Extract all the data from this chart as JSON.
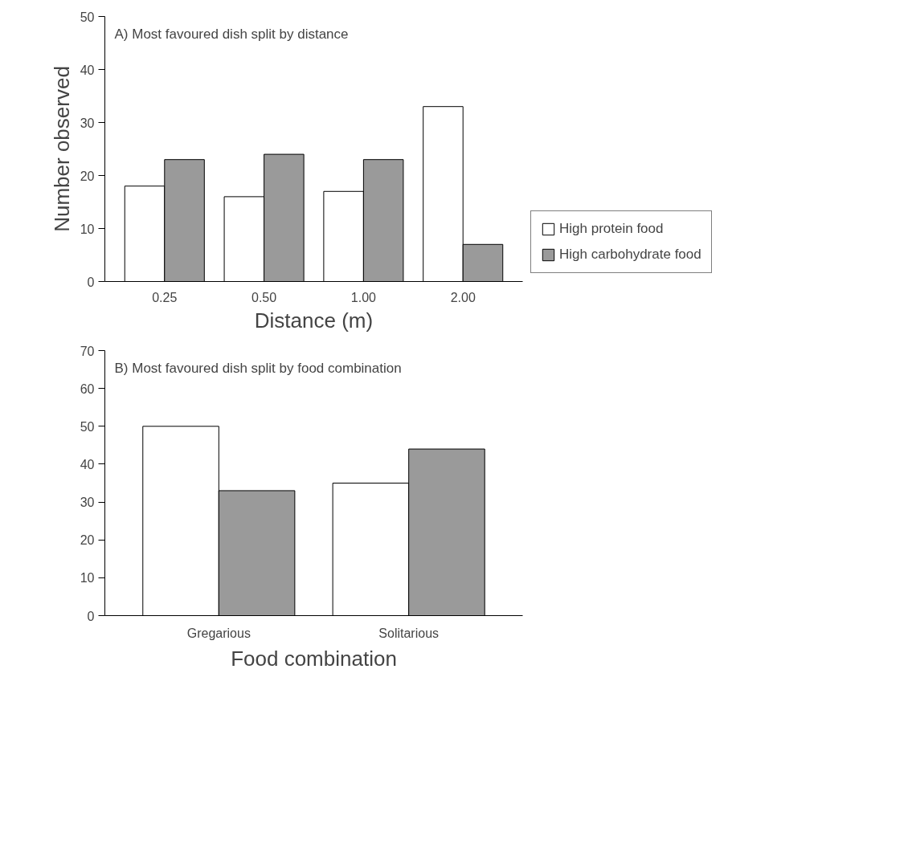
{
  "chart_data": [
    {
      "type": "bar",
      "title": "A) Most favoured dish split by distance",
      "xlabel": "Distance (m)",
      "ylabel": "Number observed",
      "categories": [
        "0.25",
        "0.50",
        "1.00",
        "2.00"
      ],
      "series": [
        {
          "name": "High protein food",
          "color": "#ffffff",
          "values": [
            18,
            16,
            17,
            33
          ]
        },
        {
          "name": "High carbohydrate food",
          "color": "#9a9a9a",
          "values": [
            23,
            24,
            23,
            7
          ]
        }
      ],
      "ylim": [
        0,
        50
      ],
      "yticks": [
        0,
        10,
        20,
        30,
        40,
        50
      ],
      "grid": false,
      "legend": "right"
    },
    {
      "type": "bar",
      "title": "B) Most favoured dish split by food combination",
      "xlabel": "Food combination",
      "categories": [
        "Gregarious",
        "Solitarious"
      ],
      "series": [
        {
          "color": "#ffffff",
          "values": [
            50,
            35
          ]
        },
        {
          "color": "#9a9a9a",
          "values": [
            33,
            44
          ]
        }
      ],
      "ylim": [
        0,
        70
      ],
      "yticks": [
        0,
        10,
        20,
        30,
        40,
        50,
        60,
        70
      ],
      "grid": false,
      "legend": false
    }
  ]
}
